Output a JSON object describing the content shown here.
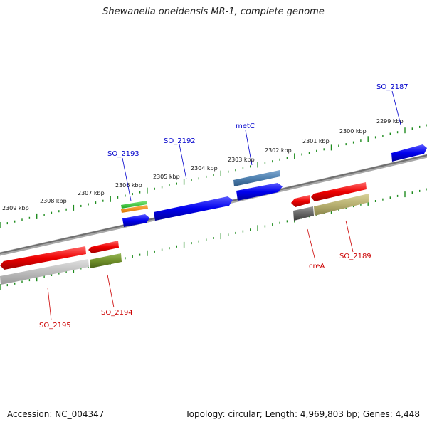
{
  "title": "Shewanella oneidensis MR-1, complete genome",
  "accession": "Accession: NC_004347",
  "summary": "Topology: circular; Length: 4,969,803 bp; Genes: 4,448",
  "colors": {
    "tick": "#1e8c1e",
    "backbone": "#7a7a7a",
    "forward_label": "#0000cc",
    "reverse_label": "#cc0000"
  },
  "ruler_labels": [
    "2309 kbp",
    "2308 kbp",
    "2307 kbp",
    "2306 kbp",
    "2305 kbp",
    "2304 kbp",
    "2303 kbp",
    "2302 kbp",
    "2301 kbp",
    "2300 kbp",
    "2299 kbp"
  ],
  "forward_genes": [
    {
      "name": "SO_2193",
      "color": "#0000ee"
    },
    {
      "name": "SO_2192",
      "color": "#0000ee"
    },
    {
      "name": "metC",
      "color": "#0000ee"
    },
    {
      "name": "SO_2187",
      "color": "#0000ee"
    }
  ],
  "reverse_genes": [
    {
      "name": "SO_2195",
      "color": "#ee0000"
    },
    {
      "name": "SO_2194",
      "color": "#ee0000"
    },
    {
      "name": "creA",
      "color": "#ee0000"
    },
    {
      "name": "SO_2189",
      "color": "#ee0000"
    }
  ],
  "feature_colors": {
    "cds_forward": "#0000ee",
    "cds_reverse": "#ee0000",
    "feature_green": "#33cc33",
    "feature_orange": "#ee8811",
    "feature_steelblue": "#4f81b0",
    "feature_gray": "#bdbdbd",
    "feature_olive": "#6f8f2a",
    "feature_darkgray": "#666666",
    "feature_khaki": "#b7b070"
  }
}
